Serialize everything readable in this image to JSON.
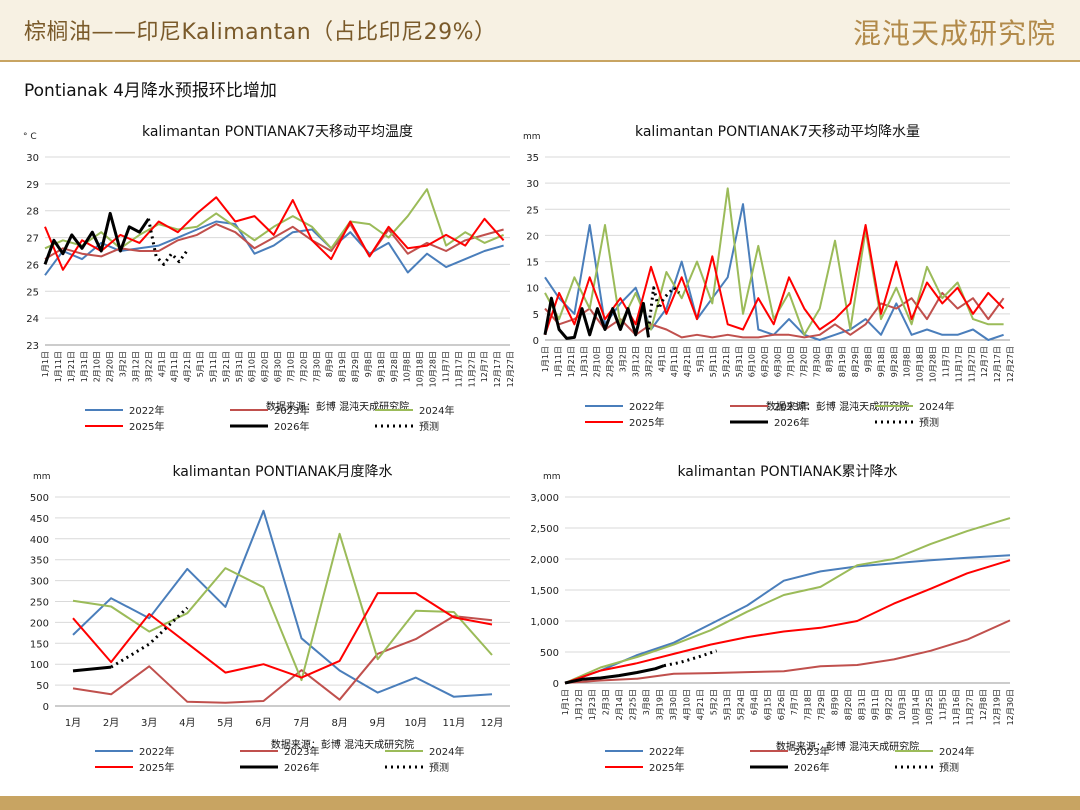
{
  "header": {
    "title": "棕榈油——印尼Kalimantan（占比印尼29%）",
    "logo_text": "混沌天成研究院",
    "subtitle": "Pontianak 4月降水预报环比增加",
    "accent": "#c8a462"
  },
  "source": "数据来源：彭博   混沌天成研究院",
  "legend_items": [
    "2022年",
    "2023年",
    "2024年",
    "2025年",
    "2026年",
    "预测"
  ],
  "colors": {
    "2022年": "#4a7ebb",
    "2023年": "#c0504d",
    "2024年": "#9bbb59",
    "2025年": "#ff0000",
    "2026年": "#000000",
    "预测": "#000000"
  },
  "daily_ticks": [
    "1月1日",
    "1月11日",
    "1月21日",
    "1月31日",
    "2月10日",
    "2月20日",
    "3月2日",
    "3月12日",
    "3月22日",
    "4月1日",
    "4月11日",
    "4月21日",
    "5月1日",
    "5月11日",
    "5月21日",
    "5月31日",
    "6月10日",
    "6月20日",
    "6月30日",
    "7月10日",
    "7月20日",
    "7月30日",
    "8月9日",
    "8月19日",
    "8月29日",
    "9月8日",
    "9月18日",
    "9月28日",
    "10月8日",
    "10月18日",
    "10月28日",
    "11月7日",
    "11月17日",
    "11月27日",
    "12月7日",
    "12月17日",
    "12月27日"
  ],
  "cum_ticks": [
    "1月1日",
    "1月12日",
    "1月23日",
    "2月3日",
    "2月14日",
    "2月25日",
    "3月8日",
    "3月19日",
    "3月30日",
    "4月10日",
    "4月21日",
    "5月2日",
    "5月13日",
    "5月24日",
    "6月4日",
    "6月15日",
    "6月26日",
    "7月7日",
    "7月18日",
    "7月29日",
    "8月9日",
    "8月20日",
    "8月31日",
    "9月11日",
    "9月22日",
    "10月3日",
    "10月14日",
    "10月25日",
    "11月5日",
    "11月16日",
    "11月27日",
    "12月8日",
    "12月19日",
    "12月30日"
  ],
  "chart_data": [
    {
      "id": "temp",
      "type": "line",
      "title": "kalimantan PONTIANAK7天移动平均温度",
      "unit": "° C",
      "ylim": [
        23,
        30
      ],
      "yticks": [
        23,
        24,
        25,
        26,
        27,
        28,
        29,
        30
      ],
      "series": [
        {
          "name": "2022年",
          "x": [
            1,
            15,
            30,
            45,
            60,
            75,
            90,
            105,
            120,
            135,
            150,
            165,
            180,
            195,
            210,
            225,
            240,
            255,
            270,
            285,
            300,
            315,
            330,
            345,
            360
          ],
          "y": [
            25.6,
            26.5,
            26.2,
            26.8,
            26.5,
            26.6,
            26.7,
            27.0,
            27.3,
            27.6,
            27.5,
            26.4,
            26.7,
            27.2,
            27.3,
            26.6,
            27.2,
            26.4,
            26.8,
            25.7,
            26.4,
            25.9,
            26.2,
            26.5,
            26.7
          ]
        },
        {
          "name": "2023年",
          "x": [
            1,
            15,
            30,
            45,
            60,
            75,
            90,
            105,
            120,
            135,
            150,
            165,
            180,
            195,
            210,
            225,
            240,
            255,
            270,
            285,
            300,
            315,
            330,
            345,
            360
          ],
          "y": [
            26.2,
            26.6,
            26.4,
            26.3,
            26.6,
            26.5,
            26.5,
            26.9,
            27.1,
            27.5,
            27.2,
            26.6,
            27.0,
            27.4,
            26.9,
            26.5,
            27.5,
            26.3,
            27.3,
            26.4,
            26.8,
            26.5,
            26.9,
            27.1,
            27.3
          ]
        },
        {
          "name": "2024年",
          "x": [
            1,
            15,
            30,
            45,
            60,
            75,
            90,
            105,
            120,
            135,
            150,
            165,
            180,
            195,
            210,
            225,
            240,
            255,
            270,
            285,
            300,
            315,
            330,
            345,
            360
          ],
          "y": [
            26.6,
            26.9,
            26.7,
            27.2,
            26.6,
            27.1,
            27.5,
            27.3,
            27.4,
            27.9,
            27.4,
            26.9,
            27.4,
            27.8,
            27.4,
            26.6,
            27.6,
            27.5,
            27.0,
            27.8,
            28.8,
            26.7,
            27.2,
            26.8,
            27.1
          ]
        },
        {
          "name": "2025年",
          "x": [
            1,
            15,
            30,
            45,
            60,
            75,
            90,
            105,
            120,
            135,
            150,
            165,
            180,
            195,
            210,
            225,
            240,
            255,
            270,
            285,
            300,
            315,
            330,
            345,
            360
          ],
          "y": [
            27.4,
            25.8,
            26.9,
            26.5,
            27.1,
            26.8,
            27.6,
            27.2,
            27.9,
            28.5,
            27.6,
            27.8,
            27.1,
            28.4,
            26.9,
            26.2,
            27.6,
            26.3,
            27.4,
            26.6,
            26.7,
            27.1,
            26.7,
            27.7,
            26.9
          ]
        },
        {
          "name": "2026年",
          "x": [
            1,
            8,
            15,
            22,
            30,
            38,
            45,
            52,
            60,
            67,
            75,
            82
          ],
          "y": [
            26.0,
            26.9,
            26.4,
            27.1,
            26.6,
            27.2,
            26.5,
            27.9,
            26.5,
            27.4,
            27.2,
            27.7
          ]
        },
        {
          "name": "预测",
          "dashed": true,
          "x": [
            82,
            88,
            94,
            100,
            106,
            112
          ],
          "y": [
            27.7,
            26.3,
            26.0,
            26.4,
            26.1,
            26.5
          ]
        }
      ]
    },
    {
      "id": "rain7",
      "type": "line",
      "title": "kalimantan PONTIANAK7天移动平均降水量",
      "unit": "mm",
      "ylim": [
        0,
        35
      ],
      "yticks": [
        0,
        5,
        10,
        15,
        20,
        25,
        30,
        35
      ],
      "series": [
        {
          "name": "2022年",
          "x": [
            1,
            12,
            24,
            36,
            48,
            60,
            72,
            84,
            96,
            108,
            120,
            132,
            144,
            156,
            168,
            180,
            192,
            204,
            216,
            228,
            240,
            252,
            264,
            276,
            288,
            300,
            312,
            324,
            336,
            348,
            360
          ],
          "y": [
            12,
            8,
            5,
            22,
            3,
            7,
            10,
            2,
            6,
            15,
            4,
            8,
            12,
            26,
            2,
            1,
            4,
            1,
            0,
            1,
            2,
            4,
            1,
            7,
            1,
            2,
            1,
            1,
            2,
            0,
            1
          ]
        },
        {
          "name": "2023年",
          "x": [
            1,
            12,
            24,
            36,
            48,
            60,
            72,
            84,
            96,
            108,
            120,
            132,
            144,
            156,
            168,
            180,
            192,
            204,
            216,
            228,
            240,
            252,
            264,
            276,
            288,
            300,
            312,
            324,
            336,
            348,
            360
          ],
          "y": [
            6,
            3,
            4,
            6,
            2,
            4,
            1,
            3,
            2,
            0.5,
            1,
            0.5,
            1,
            0.5,
            0.5,
            1,
            1,
            0.5,
            1,
            3,
            1,
            3,
            7,
            6,
            8,
            4,
            9,
            6,
            8,
            4,
            8
          ]
        },
        {
          "name": "2024年",
          "x": [
            1,
            12,
            24,
            36,
            48,
            60,
            72,
            84,
            96,
            108,
            120,
            132,
            144,
            156,
            168,
            180,
            192,
            204,
            216,
            228,
            240,
            252,
            264,
            276,
            288,
            300,
            312,
            324,
            336,
            348,
            360
          ],
          "y": [
            9,
            4,
            12,
            6,
            22,
            3,
            9,
            2,
            13,
            8,
            15,
            7,
            29,
            5,
            18,
            4,
            9,
            1,
            6,
            19,
            2,
            21,
            4,
            10,
            3,
            14,
            8,
            11,
            4,
            3,
            3
          ]
        },
        {
          "name": "2025年",
          "x": [
            1,
            12,
            24,
            36,
            48,
            60,
            72,
            84,
            96,
            108,
            120,
            132,
            144,
            156,
            168,
            180,
            192,
            204,
            216,
            228,
            240,
            252,
            264,
            276,
            288,
            300,
            312,
            324,
            336,
            348,
            360
          ],
          "y": [
            1,
            9,
            3,
            12,
            4,
            8,
            3,
            14,
            5,
            12,
            4,
            16,
            3,
            2,
            8,
            3,
            12,
            6,
            2,
            4,
            7,
            22,
            5,
            15,
            4,
            11,
            7,
            10,
            5,
            9,
            6
          ]
        },
        {
          "name": "2026年",
          "x": [
            1,
            6,
            12,
            18,
            24,
            30,
            36,
            42,
            48,
            54,
            60,
            66,
            72,
            78,
            82
          ],
          "y": [
            1,
            8,
            2,
            0.3,
            0.5,
            6,
            1,
            6,
            2,
            6,
            2,
            6,
            1,
            7,
            0.5
          ]
        },
        {
          "name": "预测",
          "dashed": true,
          "x": [
            82,
            86,
            90,
            94,
            98,
            102,
            106
          ],
          "y": [
            2,
            10,
            6,
            8,
            9,
            10,
            9
          ]
        }
      ]
    },
    {
      "id": "monthly",
      "type": "line",
      "title": "kalimantan PONTIANAK月度降水",
      "unit": "mm",
      "categories": [
        "1月",
        "2月",
        "3月",
        "4月",
        "5月",
        "6月",
        "7月",
        "8月",
        "9月",
        "10月",
        "11月",
        "12月"
      ],
      "ylim": [
        0,
        500
      ],
      "yticks": [
        0,
        50,
        100,
        150,
        200,
        250,
        300,
        350,
        400,
        450,
        500
      ],
      "series": [
        {
          "name": "2022年",
          "values": [
            170,
            258,
            210,
            328,
            237,
            467,
            162,
            85,
            32,
            68,
            22,
            28
          ]
        },
        {
          "name": "2023年",
          "values": [
            42,
            28,
            95,
            10,
            8,
            12,
            86,
            15,
            125,
            160,
            215,
            205
          ]
        },
        {
          "name": "2024年",
          "values": [
            252,
            238,
            178,
            222,
            330,
            284,
            62,
            412,
            112,
            228,
            225,
            122
          ]
        },
        {
          "name": "2025年",
          "values": [
            210,
            105,
            220,
            150,
            80,
            100,
            68,
            108,
            270,
            270,
            212,
            195
          ]
        },
        {
          "name": "2026年",
          "values": [
            84,
            93,
            null,
            null,
            null,
            null,
            null,
            null,
            null,
            null,
            null,
            null
          ]
        },
        {
          "name": "预测",
          "dashed": true,
          "values": [
            null,
            93,
            148,
            235,
            null,
            null,
            null,
            null,
            null,
            null,
            null,
            null
          ]
        }
      ]
    },
    {
      "id": "cum",
      "type": "line",
      "title": "kalimantan PONTIANAK累计降水",
      "unit": "mm",
      "ylim": [
        0,
        3000
      ],
      "yticks": [
        0,
        500,
        1000,
        1500,
        2000,
        2500,
        3000
      ],
      "ytick_labels": [
        "0",
        "500",
        "1,000",
        "1,500",
        "2,000",
        "2,500",
        "3,000"
      ],
      "series": [
        {
          "name": "2022年",
          "x": [
            1,
            30,
            60,
            90,
            120,
            150,
            180,
            210,
            240,
            270,
            300,
            330,
            365
          ],
          "y": [
            0,
            200,
            450,
            650,
            950,
            1250,
            1650,
            1800,
            1880,
            1930,
            1980,
            2020,
            2060
          ]
        },
        {
          "name": "2023年",
          "x": [
            1,
            30,
            60,
            90,
            120,
            150,
            180,
            210,
            240,
            270,
            300,
            330,
            365
          ],
          "y": [
            0,
            40,
            70,
            150,
            160,
            175,
            190,
            270,
            290,
            380,
            520,
            700,
            1010
          ]
        },
        {
          "name": "2024年",
          "x": [
            1,
            30,
            60,
            90,
            120,
            150,
            180,
            210,
            240,
            270,
            300,
            330,
            365
          ],
          "y": [
            0,
            250,
            420,
            620,
            850,
            1150,
            1420,
            1550,
            1900,
            2000,
            2240,
            2450,
            2660
          ]
        },
        {
          "name": "2025年",
          "x": [
            1,
            30,
            60,
            90,
            120,
            150,
            180,
            210,
            240,
            270,
            300,
            330,
            365
          ],
          "y": [
            0,
            200,
            320,
            470,
            620,
            740,
            830,
            890,
            1000,
            1280,
            1520,
            1770,
            1980
          ]
        },
        {
          "name": "2026年",
          "x": [
            1,
            15,
            30,
            45,
            60,
            75,
            82
          ],
          "y": [
            0,
            60,
            80,
            120,
            170,
            230,
            280
          ]
        },
        {
          "name": "预测",
          "dashed": true,
          "x": [
            82,
            95,
            110,
            125
          ],
          "y": [
            280,
            330,
            420,
            520
          ]
        }
      ]
    }
  ]
}
